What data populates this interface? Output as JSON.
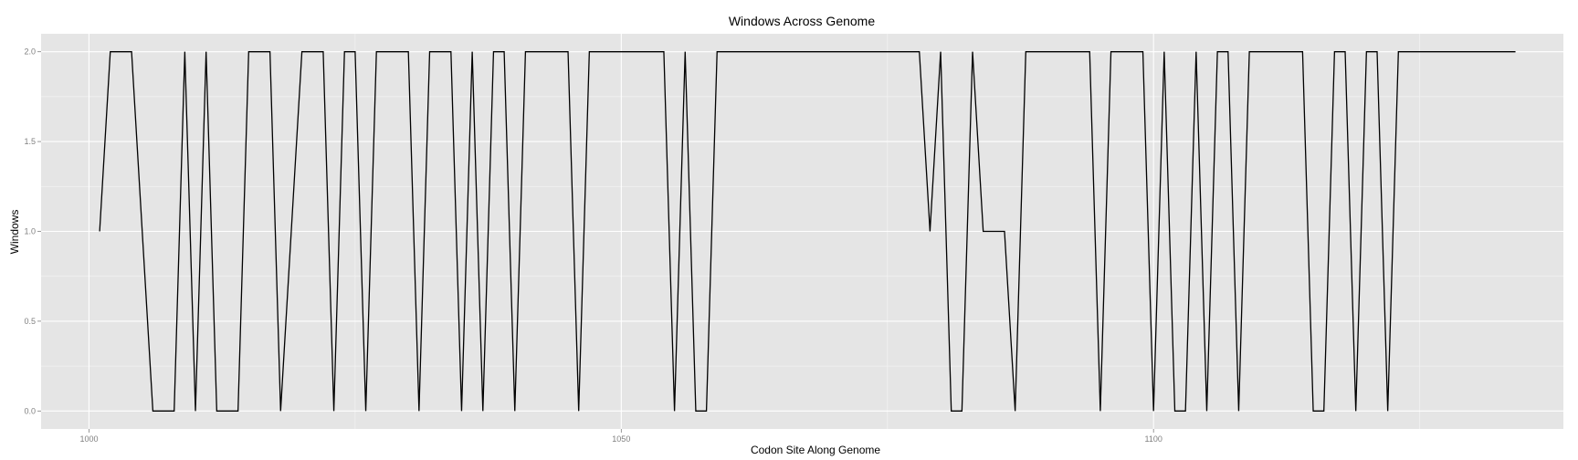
{
  "chart_data": {
    "type": "line",
    "title": "Windows Across Genome",
    "xlabel": "Codon Site Along Genome",
    "ylabel": "Windows",
    "xlim": [
      995.5,
      1138.5
    ],
    "ylim": [
      -0.1,
      2.1
    ],
    "xticks": [
      1000,
      1050,
      1100
    ],
    "xtick_labels": [
      "1000",
      "1050",
      "1100"
    ],
    "yticks": [
      0.0,
      0.5,
      1.0,
      1.5,
      2.0
    ],
    "ytick_labels": [
      "0.0",
      "0.5",
      "1.0",
      "1.5",
      "2.0"
    ],
    "grid": true,
    "colors": {
      "panel": "#e5e5e5",
      "grid_major": "#ffffff",
      "grid_minor": "#f2f2f2",
      "line": "#000000",
      "background": "#ffffff"
    },
    "series": [
      {
        "x": [
          1001,
          1002,
          1003,
          1004,
          1005,
          1006,
          1007,
          1008,
          1009,
          1010,
          1011,
          1012,
          1013,
          1014,
          1015,
          1016,
          1017,
          1018,
          1019,
          1020,
          1021,
          1022,
          1023,
          1024,
          1025,
          1026,
          1027,
          1028,
          1029,
          1030,
          1031,
          1032,
          1033,
          1034,
          1035,
          1036,
          1037,
          1038,
          1039,
          1040,
          1041,
          1042,
          1043,
          1044,
          1045,
          1046,
          1047,
          1048,
          1049,
          1050,
          1051,
          1052,
          1053,
          1054,
          1055,
          1056,
          1057,
          1058,
          1059,
          1060,
          1061,
          1062,
          1063,
          1064,
          1065,
          1066,
          1067,
          1068,
          1069,
          1070,
          1071,
          1072,
          1073,
          1074,
          1075,
          1076,
          1077,
          1078,
          1079,
          1080,
          1081,
          1082,
          1083,
          1084,
          1085,
          1086,
          1087,
          1088,
          1089,
          1090,
          1091,
          1092,
          1093,
          1094,
          1095,
          1096,
          1097,
          1098,
          1099,
          1100,
          1101,
          1102,
          1103,
          1104,
          1105,
          1106,
          1107,
          1108,
          1109,
          1110,
          1111,
          1112,
          1113,
          1114,
          1115,
          1116,
          1117,
          1118,
          1119,
          1120,
          1121,
          1122,
          1123,
          1124,
          1125,
          1126,
          1127,
          1128,
          1129,
          1130,
          1131,
          1132,
          1133,
          1134
        ],
        "y": [
          1,
          2,
          2,
          2,
          1,
          0,
          0,
          0,
          2,
          0,
          2,
          0,
          0,
          0,
          2,
          2,
          2,
          0,
          1,
          2,
          2,
          2,
          0,
          2,
          2,
          0,
          2,
          2,
          2,
          2,
          0,
          2,
          2,
          2,
          0,
          2,
          0,
          2,
          2,
          0,
          2,
          2,
          2,
          2,
          2,
          0,
          2,
          2,
          2,
          2,
          2,
          2,
          2,
          2,
          0,
          2,
          0,
          0,
          2,
          2,
          2,
          2,
          2,
          2,
          2,
          2,
          2,
          2,
          2,
          2,
          2,
          2,
          2,
          2,
          2,
          2,
          2,
          2,
          1,
          2,
          0,
          0,
          2,
          1,
          1,
          1,
          0,
          2,
          2,
          2,
          2,
          2,
          2,
          2,
          0,
          2,
          2,
          2,
          2,
          0,
          2,
          0,
          0,
          2,
          0,
          2,
          2,
          0,
          2,
          2,
          2,
          2,
          2,
          2,
          0,
          0,
          2,
          2,
          0,
          2,
          2,
          0,
          2,
          2,
          2,
          2,
          2,
          2,
          2,
          2,
          2,
          2,
          2,
          2
        ]
      }
    ]
  }
}
